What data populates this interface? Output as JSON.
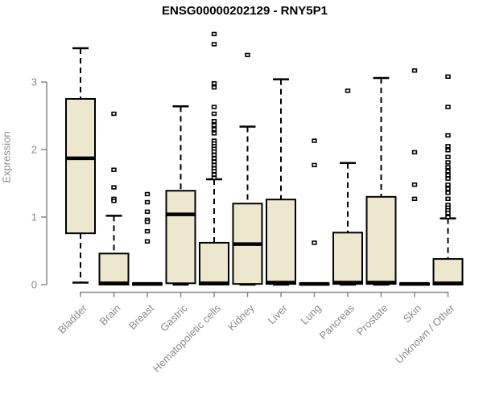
{
  "chart_data": {
    "type": "boxplot",
    "title": "ENSG00000202129 - RNY5P1",
    "ylabel": "Expression",
    "xlabel": "",
    "ylim": [
      0,
      3.8
    ],
    "yticks": [
      0,
      1,
      2,
      3
    ],
    "grid": false,
    "legend": "none",
    "categories": [
      "Bladder",
      "Brain",
      "Breast",
      "Gastric",
      "Hematopoietic cells",
      "Kidney",
      "Liver",
      "Lung",
      "Pancreas",
      "Prostate",
      "Skin",
      "Unknown / Other"
    ],
    "series": [
      {
        "name": "Bladder",
        "whislo": 0.03,
        "q1": 0.76,
        "med": 1.87,
        "q3": 2.75,
        "whishi": 3.5,
        "fliers": []
      },
      {
        "name": "Brain",
        "whislo": 0.0,
        "q1": 0.0,
        "med": 0.02,
        "q3": 0.46,
        "whishi": 1.02,
        "fliers": [
          2.53,
          1.7,
          1.44,
          1.27,
          1.24
        ]
      },
      {
        "name": "Breast",
        "whislo": 0.0,
        "q1": 0.0,
        "med": 0.01,
        "q3": 0.02,
        "whishi": 0.02,
        "fliers": [
          1.34,
          1.22,
          1.08,
          0.96,
          0.93,
          0.79,
          0.64
        ]
      },
      {
        "name": "Gastric",
        "whislo": 0.0,
        "q1": 0.02,
        "med": 1.04,
        "q3": 1.39,
        "whishi": 2.64,
        "fliers": []
      },
      {
        "name": "Hematopoietic cells",
        "whislo": 0.0,
        "q1": 0.0,
        "med": 0.02,
        "q3": 0.62,
        "whishi": 1.56,
        "fliers": [
          3.71,
          3.56,
          2.98,
          2.92,
          2.63,
          2.53,
          2.42,
          2.36,
          2.3,
          2.24,
          2.13,
          2.09,
          2.05,
          2.01,
          1.97,
          1.92,
          1.87,
          1.82,
          1.77,
          1.72,
          1.68,
          1.63,
          1.58
        ]
      },
      {
        "name": "Kidney",
        "whislo": 0.0,
        "q1": 0.01,
        "med": 0.6,
        "q3": 1.2,
        "whishi": 2.34,
        "fliers": [
          3.4
        ]
      },
      {
        "name": "Liver",
        "whislo": 0.0,
        "q1": 0.01,
        "med": 0.03,
        "q3": 1.26,
        "whishi": 3.04,
        "fliers": []
      },
      {
        "name": "Lung",
        "whislo": 0.0,
        "q1": 0.0,
        "med": 0.01,
        "q3": 0.02,
        "whishi": 0.02,
        "fliers": [
          2.13,
          1.77,
          0.62
        ]
      },
      {
        "name": "Pancreas",
        "whislo": 0.0,
        "q1": 0.01,
        "med": 0.03,
        "q3": 0.77,
        "whishi": 1.8,
        "fliers": [
          2.87
        ]
      },
      {
        "name": "Prostate",
        "whislo": 0.0,
        "q1": 0.01,
        "med": 0.03,
        "q3": 1.3,
        "whishi": 3.06,
        "fliers": []
      },
      {
        "name": "Skin",
        "whislo": 0.0,
        "q1": 0.0,
        "med": 0.01,
        "q3": 0.02,
        "whishi": 0.02,
        "fliers": [
          3.17,
          1.96,
          1.48,
          1.27
        ]
      },
      {
        "name": "Unknown / Other",
        "whislo": 0.0,
        "q1": 0.0,
        "med": 0.02,
        "q3": 0.38,
        "whishi": 0.98,
        "fliers": [
          3.08,
          2.63,
          2.21,
          2.05,
          1.99,
          1.89,
          1.81,
          1.74,
          1.68,
          1.62,
          1.57,
          1.48,
          1.42,
          1.36,
          1.27,
          1.18,
          1.14,
          1.1,
          1.06,
          1.0
        ]
      }
    ],
    "colors": {
      "box_fill": "#ece7cd",
      "box_stroke": "#000000",
      "whisker": "#000000",
      "median": "#000000",
      "outlier_fill": "#ffffff",
      "outlier_stroke": "#000000",
      "axis": "#878787",
      "tick_label": "#8a8a8a",
      "title": "#000000",
      "background": "#ffffff"
    }
  }
}
